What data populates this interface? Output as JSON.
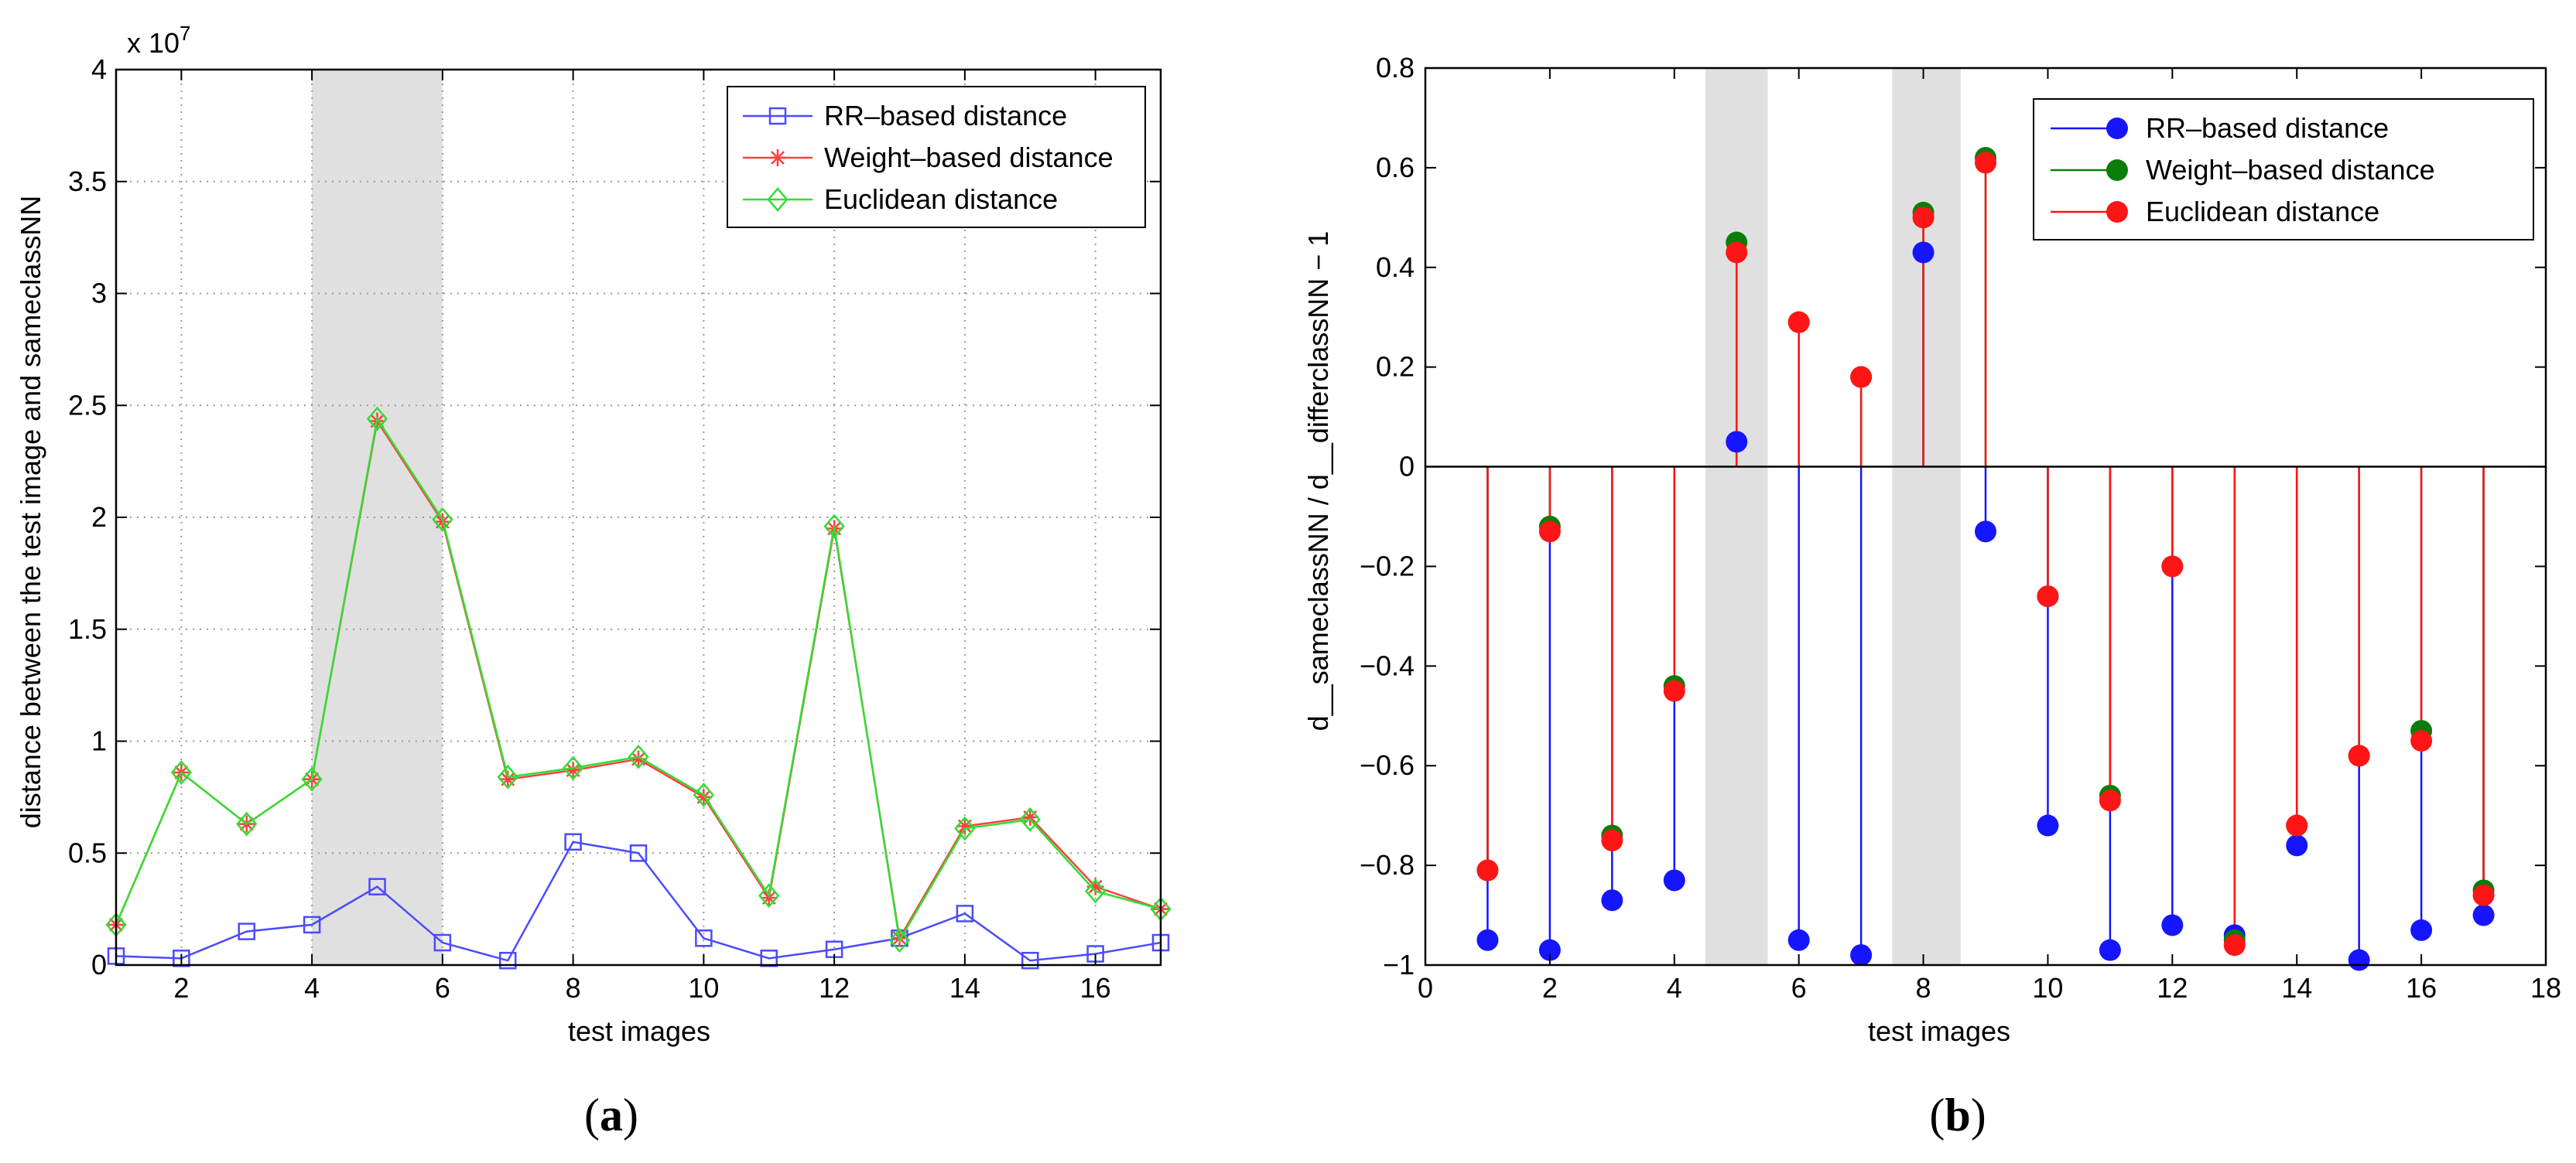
{
  "chart_data": [
    {
      "type": "line",
      "panel_label": "a",
      "xlabel": "test images",
      "ylabel": "distance between the test image and sameclassNN",
      "exponent_label": "x 10",
      "exponent_power": "7",
      "xlim": [
        1,
        17
      ],
      "ylim": [
        0,
        4
      ],
      "xticks": [
        2,
        4,
        6,
        8,
        10,
        12,
        14,
        16
      ],
      "yticks": [
        0,
        0.5,
        1,
        1.5,
        2,
        2.5,
        3,
        3.5,
        4
      ],
      "ytick_labels": [
        "0",
        "0.5",
        "1",
        "1.5",
        "2",
        "2.5",
        "3",
        "3.5",
        "4"
      ],
      "grid": true,
      "legend_position": "top-right",
      "shaded_regions": [
        [
          4,
          6
        ]
      ],
      "x": [
        1,
        2,
        3,
        4,
        5,
        6,
        7,
        8,
        9,
        10,
        11,
        12,
        13,
        14,
        15,
        16,
        17
      ],
      "series": [
        {
          "name": "RR–based distance",
          "color": "#4b4bff",
          "marker": "square",
          "values": [
            0.04,
            0.03,
            0.15,
            0.18,
            0.35,
            0.1,
            0.02,
            0.55,
            0.5,
            0.12,
            0.03,
            0.07,
            0.12,
            0.23,
            0.02,
            0.05,
            0.1
          ]
        },
        {
          "name": "Weight–based distance",
          "color": "#ff4040",
          "marker": "star",
          "values": [
            0.18,
            0.86,
            0.63,
            0.83,
            2.43,
            1.98,
            0.83,
            0.87,
            0.92,
            0.75,
            0.3,
            1.95,
            0.12,
            0.62,
            0.66,
            0.35,
            0.25
          ]
        },
        {
          "name": "Euclidean distance",
          "color": "#33dd33",
          "marker": "diamond",
          "values": [
            0.18,
            0.86,
            0.63,
            0.83,
            2.44,
            1.99,
            0.84,
            0.88,
            0.93,
            0.76,
            0.31,
            1.96,
            0.11,
            0.61,
            0.65,
            0.33,
            0.25
          ]
        }
      ]
    },
    {
      "type": "stem",
      "panel_label": "b",
      "xlabel": "test images",
      "ylabel": "d__sameclassNN / d__differclassNN − 1",
      "xlim": [
        0,
        18
      ],
      "ylim": [
        -1,
        0.8
      ],
      "xticks": [
        0,
        2,
        4,
        6,
        8,
        10,
        12,
        14,
        16,
        18
      ],
      "yticks": [
        -1,
        -0.8,
        -0.6,
        -0.4,
        -0.2,
        0,
        0.2,
        0.4,
        0.6,
        0.8
      ],
      "ytick_labels": [
        "−1",
        "−0.8",
        "−0.6",
        "−0.4",
        "−0.2",
        "0",
        "0.2",
        "0.4",
        "0.6",
        "0.8"
      ],
      "grid": false,
      "legend_position": "top-right",
      "shaded_regions": [
        [
          4.5,
          5.5
        ],
        [
          7.5,
          8.6
        ]
      ],
      "x": [
        1,
        2,
        3,
        4,
        5,
        6,
        7,
        8,
        9,
        10,
        11,
        12,
        13,
        14,
        15,
        16,
        17
      ],
      "series": [
        {
          "name": "RR–based distance",
          "color": "#1515ff",
          "values": [
            -0.95,
            -0.97,
            -0.87,
            -0.83,
            0.05,
            -0.95,
            -0.98,
            0.43,
            -0.13,
            -0.72,
            -0.97,
            -0.92,
            -0.94,
            -0.76,
            -0.99,
            -0.93,
            -0.9
          ]
        },
        {
          "name": "Weight–based distance",
          "color": "#0a7d0a",
          "values": [
            -0.81,
            -0.12,
            -0.74,
            -0.44,
            0.45,
            0.29,
            0.18,
            0.51,
            0.62,
            -0.26,
            -0.66,
            -0.2,
            -0.95,
            -0.72,
            -0.58,
            -0.53,
            -0.85
          ]
        },
        {
          "name": "Euclidean distance",
          "color": "#ff1515",
          "values": [
            -0.81,
            -0.13,
            -0.75,
            -0.45,
            0.43,
            0.29,
            0.18,
            0.5,
            0.61,
            -0.26,
            -0.67,
            -0.2,
            -0.96,
            -0.72,
            -0.58,
            -0.55,
            -0.86
          ]
        }
      ]
    }
  ]
}
